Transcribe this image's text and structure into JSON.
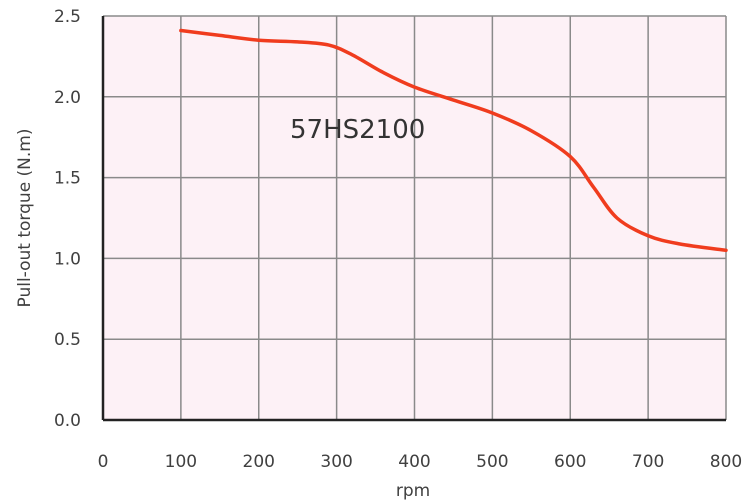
{
  "chart_data": {
    "type": "line",
    "title": "",
    "xlabel": "rpm",
    "ylabel": "Pull-out torque  (N.m)",
    "xlim": [
      0,
      800
    ],
    "ylim": [
      0,
      2.5
    ],
    "x_ticks": [
      "0",
      "100",
      "200",
      "300",
      "400",
      "500",
      "600",
      "700",
      "800"
    ],
    "y_ticks": [
      "0.0",
      "0.5",
      "1.0",
      "1.5",
      "2.0",
      "2.5"
    ],
    "grid": true,
    "annotation": "57HS2100",
    "colors": {
      "plot_background": "#fdf1f6",
      "grid": "#8a8a8a",
      "axis": "#222222",
      "line": "#f03c1e"
    },
    "series": [
      {
        "x": [
          100,
          150,
          200,
          250,
          290,
          320,
          360,
          400,
          450,
          500,
          550,
          600,
          630,
          660,
          700,
          740,
          800
        ],
        "y": [
          2.41,
          2.38,
          2.35,
          2.34,
          2.32,
          2.26,
          2.15,
          2.06,
          1.98,
          1.9,
          1.79,
          1.63,
          1.44,
          1.25,
          1.14,
          1.09,
          1.05
        ]
      }
    ]
  }
}
